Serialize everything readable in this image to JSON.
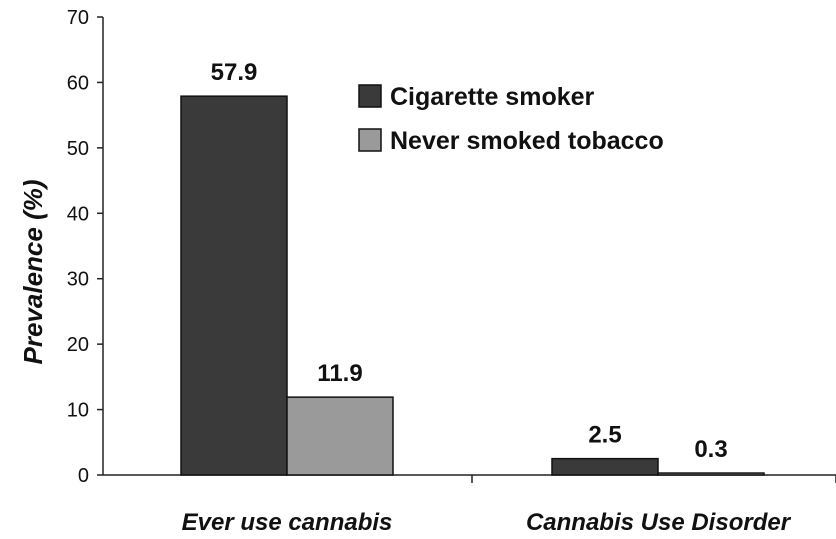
{
  "chart_data": {
    "type": "bar",
    "title": "",
    "xlabel": "",
    "ylabel": "Prevalence (%)",
    "ylim": [
      0,
      70
    ],
    "yticks": [
      "0",
      "10",
      "20",
      "30",
      "40",
      "50",
      "60",
      "70"
    ],
    "categories": [
      "Ever use cannabis",
      "Cannabis Use Disorder"
    ],
    "series": [
      {
        "name": "Cigarette smoker",
        "values": [
          57.9,
          2.5
        ],
        "labels": [
          "57.9",
          "2.5"
        ],
        "color": "#3a3a3a"
      },
      {
        "name": "Never smoked tobacco",
        "values": [
          11.9,
          0.3
        ],
        "labels": [
          "11.9",
          "0.3"
        ],
        "color": "#9a9a9a"
      }
    ],
    "legend_position": "top-right",
    "grid": false
  }
}
